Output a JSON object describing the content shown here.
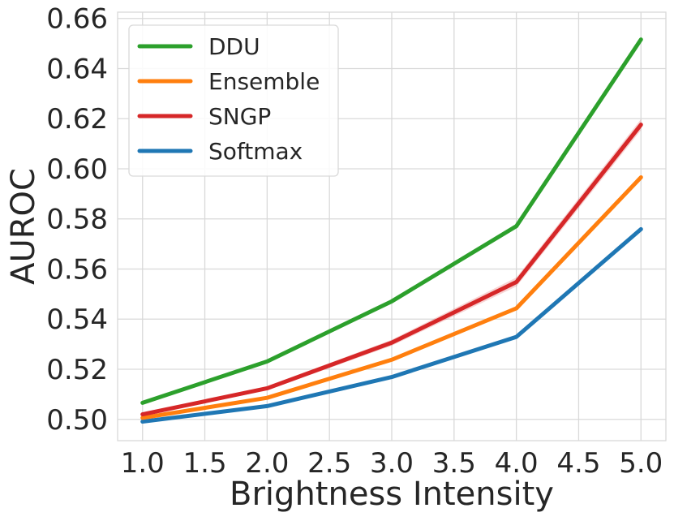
{
  "chart_data": {
    "type": "line",
    "title": "",
    "xlabel": "Brightness Intensity",
    "ylabel": "AUROC",
    "x": [
      1.0,
      2.0,
      3.0,
      4.0,
      5.0
    ],
    "xlim": [
      0.8,
      5.2
    ],
    "ylim": [
      0.4915,
      0.6625
    ],
    "xticks": [
      1.0,
      1.5,
      2.0,
      2.5,
      3.0,
      3.5,
      4.0,
      4.5,
      5.0
    ],
    "xtick_labels": [
      "1.0",
      "1.5",
      "2.0",
      "2.5",
      "3.0",
      "3.5",
      "4.0",
      "4.5",
      "5.0"
    ],
    "yticks": [
      0.5,
      0.52,
      0.54,
      0.56,
      0.58,
      0.6,
      0.62,
      0.64,
      0.66
    ],
    "ytick_labels": [
      "0.50",
      "0.52",
      "0.54",
      "0.56",
      "0.58",
      "0.60",
      "0.62",
      "0.64",
      "0.66"
    ],
    "grid": true,
    "legend_position": "top-left",
    "series": [
      {
        "name": "DDU",
        "color": "#2ca02c",
        "values": [
          0.5066,
          0.5231,
          0.5471,
          0.5771,
          0.6516
        ],
        "band": [
          0.0004,
          0.0005,
          0.0006,
          0.0008,
          0.0012
        ]
      },
      {
        "name": "Ensemble",
        "color": "#ff7f0e",
        "values": [
          0.5006,
          0.5086,
          0.5238,
          0.5443,
          0.5966
        ],
        "band": [
          0.0003,
          0.0004,
          0.0005,
          0.0006,
          0.0008
        ]
      },
      {
        "name": "SNGP",
        "color": "#d62728",
        "values": [
          0.502,
          0.5124,
          0.5306,
          0.5548,
          0.6176
        ],
        "band": [
          0.0005,
          0.0008,
          0.0012,
          0.0018,
          0.0022
        ]
      },
      {
        "name": "Softmax",
        "color": "#1f77b4",
        "values": [
          0.4991,
          0.5053,
          0.5169,
          0.5329,
          0.5759
        ],
        "band": [
          0.0002,
          0.0003,
          0.0003,
          0.0004,
          0.0006
        ]
      }
    ]
  }
}
